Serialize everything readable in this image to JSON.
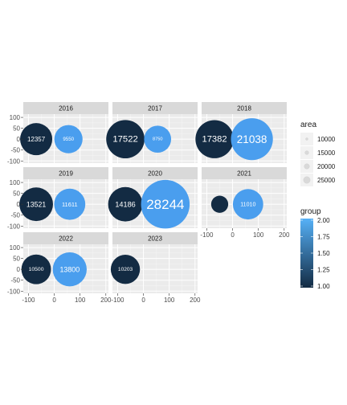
{
  "chart_data": {
    "type": "scatter",
    "facet_by": "year",
    "x_axis": {
      "ticks": [
        -100,
        0,
        100,
        200
      ],
      "range": [
        -120,
        210
      ]
    },
    "y_axis": {
      "ticks": [
        100,
        50,
        0,
        -50,
        -100
      ],
      "range": [
        -110,
        115
      ]
    },
    "panels": [
      {
        "year": "2016",
        "points": [
          {
            "x": -70,
            "y": 0,
            "area": 12357,
            "group": 1,
            "label": "12357"
          },
          {
            "x": 55,
            "y": 0,
            "area": 9550,
            "group": 2,
            "label": "9550"
          }
        ]
      },
      {
        "year": "2017",
        "points": [
          {
            "x": -70,
            "y": 0,
            "area": 17522,
            "group": 1,
            "label": "17522"
          },
          {
            "x": 55,
            "y": 0,
            "area": 8750,
            "group": 2,
            "label": "8750"
          }
        ]
      },
      {
        "year": "2018",
        "points": [
          {
            "x": -70,
            "y": 0,
            "area": 17382,
            "group": 1,
            "label": "17382"
          },
          {
            "x": 75,
            "y": 0,
            "area": 21038,
            "group": 2,
            "label": "21038"
          }
        ]
      },
      {
        "year": "2019",
        "points": [
          {
            "x": -70,
            "y": 0,
            "area": 13521,
            "group": 1,
            "label": "13521"
          },
          {
            "x": 60,
            "y": 0,
            "area": 11611,
            "group": 2,
            "label": "11611"
          }
        ]
      },
      {
        "year": "2020",
        "points": [
          {
            "x": -70,
            "y": 0,
            "area": 14186,
            "group": 1,
            "label": "14186"
          },
          {
            "x": 85,
            "y": 0,
            "area": 28244,
            "group": 2,
            "label": "28244"
          }
        ]
      },
      {
        "year": "2021",
        "points": [
          {
            "x": -50,
            "y": 0,
            "area": 3500,
            "group": 1,
            "label": ""
          },
          {
            "x": 60,
            "y": 0,
            "area": 11010,
            "group": 2,
            "label": "11010"
          }
        ]
      },
      {
        "year": "2022",
        "points": [
          {
            "x": -70,
            "y": 0,
            "area": 10500,
            "group": 1,
            "label": "10500"
          },
          {
            "x": 60,
            "y": 0,
            "area": 13800,
            "group": 2,
            "label": "13800"
          }
        ]
      },
      {
        "year": "2023",
        "points": [
          {
            "x": -70,
            "y": 0,
            "area": 10203,
            "group": 1,
            "label": "10203"
          }
        ]
      }
    ],
    "legend_area": {
      "title": "area",
      "breaks": [
        10000,
        15000,
        20000,
        25000
      ],
      "labels": [
        "10000",
        "15000",
        "20000",
        "25000"
      ]
    },
    "legend_group": {
      "title": "group",
      "breaks": [
        2.0,
        1.75,
        1.5,
        1.25,
        1.0
      ],
      "labels": [
        "2.00",
        "1.75",
        "1.50",
        "1.25",
        "1.00"
      ],
      "low_color": "#132B43",
      "high_color": "#56B1F7"
    },
    "grid": true,
    "legend_position": "right"
  },
  "colors": {
    "panel_bg": "#ebebeb",
    "strip_bg": "#d9d9d9",
    "grid_major": "#ffffff",
    "low": "#132B43",
    "high": "#4a9eee"
  }
}
